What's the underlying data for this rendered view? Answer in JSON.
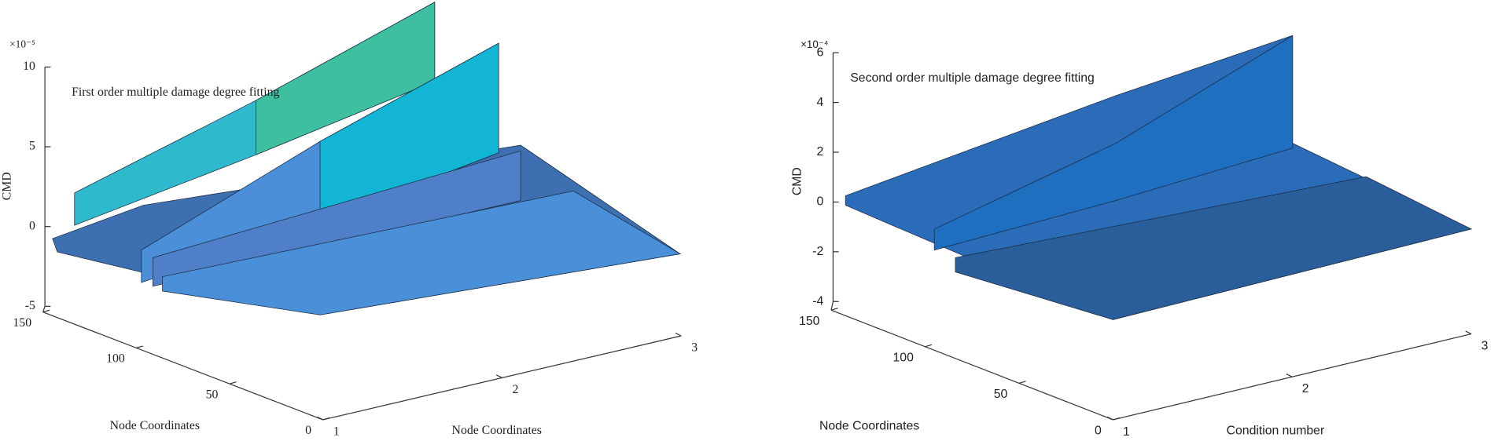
{
  "chart_data": [
    {
      "type": "surface",
      "annotation": "First order multiple damage degree fitting",
      "zlabel": "CMD",
      "ylabel": "Node Coordinates",
      "xlabel": "Node Coordinates",
      "exponent": "×10⁻⁵",
      "zlim": [
        -5,
        10
      ],
      "zticks": [
        -5,
        0,
        5,
        10
      ],
      "ylim": [
        0,
        150
      ],
      "yticks": [
        0,
        50,
        100,
        150
      ],
      "xlim": [
        1,
        3
      ],
      "xticks": [
        1,
        2,
        3
      ]
    },
    {
      "type": "surface",
      "annotation": "Second order multiple damage degree fitting",
      "zlabel": "CMD",
      "ylabel": "Node Coordinates",
      "xlabel": "Condition number",
      "exponent": "×10⁻⁴",
      "zlim": [
        -4,
        6
      ],
      "zticks": [
        -4,
        -2,
        0,
        2,
        4,
        6
      ],
      "ylim": [
        0,
        150
      ],
      "yticks": [
        0,
        50,
        100,
        150
      ],
      "xlim": [
        1,
        3
      ],
      "xticks": [
        1,
        2,
        3
      ]
    }
  ]
}
